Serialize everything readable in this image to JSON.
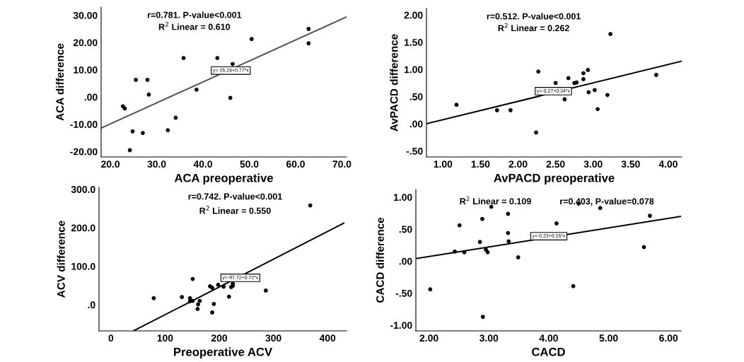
{
  "chart_data": [
    {
      "type": "scatter",
      "xlabel": "ACA preoperative",
      "ylabel": "ACA difference",
      "grid": false,
      "annotations": [
        "r=0.781. P-value<0.001",
        "R$^{2}$ Linear = 0.610",
        {
          "text": "y=-25.24+0.77*x",
          "x": 46,
          "y": 9.7
        }
      ],
      "xlim": [
        18,
        71
      ],
      "ylim": [
        -22,
        33
      ],
      "xticks": [
        {
          "value": 20,
          "label": "20.0"
        },
        {
          "value": 30,
          "label": "30.0"
        },
        {
          "value": 40,
          "label": "40.0"
        },
        {
          "value": 50,
          "label": "50.0"
        },
        {
          "value": 60,
          "label": "60.0"
        },
        {
          "value": 70,
          "label": "70.0"
        }
      ],
      "yticks": [
        {
          "value": -20,
          "label": "-20.00"
        },
        {
          "value": -10,
          "label": "-10.00"
        },
        {
          "value": 0,
          "label": ".00"
        },
        {
          "value": 10,
          "label": "10.00"
        },
        {
          "value": 20,
          "label": "20.00"
        },
        {
          "value": 30,
          "label": "30.00"
        }
      ],
      "series": [
        {
          "marker": "circle",
          "color": "#000000",
          "x": [
            22.7,
            23.1,
            24.8,
            24.2,
            25.5,
            27.0,
            28.0,
            28.3,
            32.4,
            34.1,
            35.8,
            38.6,
            43.1,
            45.9,
            46.4,
            50.5,
            62.8,
            62.8
          ],
          "values": [
            -3.4,
            -4.2,
            -12.6,
            -19.5,
            6.3,
            -13.2,
            6.3,
            0.9,
            -12.2,
            -7.6,
            14.3,
            2.7,
            14.3,
            -0.3,
            12.1,
            21.3,
            25.0,
            19.7
          ]
        },
        {
          "type": "line",
          "color": "#555555",
          "x": [
            18,
            71
          ],
          "values": [
            -11.4,
            29.4
          ]
        }
      ]
    },
    {
      "type": "scatter",
      "xlabel": "AvPACD preoperative",
      "ylabel": "AvPACD difference",
      "grid": false,
      "annotations": [
        "r=0.512. P-value<0.001",
        "R$^{2}$ Linear = 0.262",
        {
          "text": "y=-0.27+0.34*x",
          "x": 2.47,
          "y": 0.6
        }
      ],
      "xlim": [
        0.78,
        4.18
      ],
      "ylim": [
        -0.61,
        2.12
      ],
      "xticks": [
        {
          "value": 1,
          "label": "1.00"
        },
        {
          "value": 1.5,
          "label": "1.50"
        },
        {
          "value": 2,
          "label": "2.00"
        },
        {
          "value": 2.5,
          "label": "2.50"
        },
        {
          "value": 3,
          "label": "3.00"
        },
        {
          "value": 3.5,
          "label": "3.50"
        },
        {
          "value": 4,
          "label": "4.00"
        }
      ],
      "yticks": [
        {
          "value": -0.5,
          "label": "-.50"
        },
        {
          "value": 0,
          "label": ".00"
        },
        {
          "value": 0.5,
          "label": ".50"
        },
        {
          "value": 1,
          "label": "1.00"
        },
        {
          "value": 1.5,
          "label": "1.50"
        },
        {
          "value": 2,
          "label": "2.00"
        }
      ],
      "series": [
        {
          "marker": "circle",
          "color": "#000000",
          "x": [
            1.18,
            1.72,
            1.9,
            2.24,
            2.27,
            2.5,
            2.62,
            2.67,
            2.75,
            2.78,
            2.87,
            2.87,
            2.93,
            2.94,
            3.02,
            3.06,
            3.19,
            3.23,
            3.84
          ],
          "values": [
            0.35,
            0.25,
            0.25,
            -0.16,
            0.96,
            0.75,
            0.45,
            0.84,
            0.75,
            0.76,
            0.82,
            0.93,
            0.99,
            0.58,
            0.62,
            0.27,
            0.53,
            1.65,
            0.9
          ]
        },
        {
          "type": "line",
          "color": "#000000",
          "x": [
            0.78,
            4.18
          ],
          "values": [
            0.0,
            1.15
          ]
        }
      ]
    },
    {
      "type": "scatter",
      "xlabel": "Preoperative ACV",
      "ylabel": "ACV difference",
      "grid": false,
      "annotations": [
        "r=0.742. P-value<0.001",
        "R$^{2}$ Linear = 0.550",
        {
          "text": "y=-97.72+0.72*x",
          "x": 239,
          "y": 70
        }
      ],
      "xlim": [
        -22,
        435
      ],
      "ylim": [
        -68,
        305
      ],
      "xticks": [
        0,
        100,
        200,
        300,
        400
      ],
      "yticks": [
        {
          "value": 0,
          "label": ".0"
        },
        {
          "value": 100,
          "label": "100.0"
        },
        {
          "value": 200,
          "label": "200.0"
        },
        {
          "value": 300,
          "label": "300.0"
        }
      ],
      "series": [
        {
          "marker": "circle",
          "color": "#000000",
          "x": [
            79,
            131,
            146,
            146,
            151,
            161,
            151,
            160,
            164,
            183,
            187,
            198,
            187,
            190,
            208,
            218,
            222,
            225,
            225,
            286,
            368
          ],
          "values": [
            17,
            20,
            17,
            9,
            67,
            1,
            10,
            -11,
            10,
            48,
            44,
            52,
            -20,
            2,
            47,
            21,
            46,
            55,
            49,
            37,
            258
          ]
        },
        {
          "type": "line",
          "color": "#000000",
          "x": [
            43,
            430
          ],
          "values": [
            -67,
            212
          ]
        }
      ]
    },
    {
      "type": "scatter",
      "xlabel": "CACD",
      "ylabel": "CACD difference",
      "grid": false,
      "annotations": [
        "r=0.403, P-value=0.078",
        "R$^{2}$ Linear = 0.109",
        {
          "text": "y=-0.23+0.15*x",
          "x": 4.0,
          "y": 0.39
        }
      ],
      "xlim": [
        1.78,
        6.21
      ],
      "ylim": [
        -1.09,
        1.12
      ],
      "xticks": [
        {
          "value": 2,
          "label": "2.00"
        },
        {
          "value": 3,
          "label": "3.00"
        },
        {
          "value": 4,
          "label": "4.00"
        },
        {
          "value": 5,
          "label": "5.00"
        },
        {
          "value": 6,
          "label": "6.00"
        }
      ],
      "yticks": [
        {
          "value": -1,
          "label": "-1.00"
        },
        {
          "value": -0.5,
          "label": "-.50"
        },
        {
          "value": 0,
          "label": ".00"
        },
        {
          "value": 0.5,
          "label": ".50"
        },
        {
          "value": 1,
          "label": "1.00"
        }
      ],
      "series": [
        {
          "marker": "circle",
          "color": "#000000",
          "x": [
            2.02,
            2.43,
            2.51,
            2.59,
            2.85,
            2.89,
            2.9,
            2.95,
            2.98,
            3.04,
            3.32,
            3.32,
            3.33,
            3.49,
            4.13,
            4.41,
            4.5,
            4.86,
            5.59,
            5.69
          ],
          "values": [
            -0.44,
            0.15,
            0.56,
            0.14,
            0.3,
            0.66,
            -0.87,
            0.18,
            0.14,
            0.85,
            0.74,
            0.44,
            0.31,
            0.06,
            0.59,
            -0.39,
            0.9,
            0.83,
            0.22,
            0.71
          ]
        },
        {
          "type": "line",
          "color": "#000000",
          "x": [
            1.78,
            6.21
          ],
          "values": [
            0.04,
            0.7
          ]
        }
      ]
    }
  ]
}
